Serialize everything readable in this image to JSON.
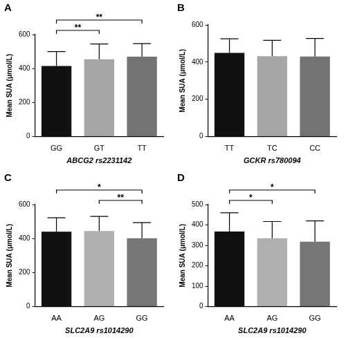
{
  "chart_data": [
    {
      "type": "bar",
      "title": "A",
      "x_label": "ABCG2 rs2231142",
      "y_label": "Mean SUA (μmol/L)",
      "categories": [
        "GG",
        "GT",
        "TT"
      ],
      "values": [
        415,
        455,
        470
      ],
      "errors": [
        85,
        90,
        77
      ],
      "colors": [
        "#111111",
        "#a6a6a6",
        "#737373"
      ],
      "ylim": [
        0,
        600
      ],
      "yticks": [
        0,
        200,
        400,
        600
      ],
      "grid": false,
      "annotations": [
        {
          "from": "GG",
          "to": "GT",
          "label": "**"
        },
        {
          "from": "GG",
          "to": "TT",
          "label": "**"
        }
      ]
    },
    {
      "type": "bar",
      "title": "B",
      "x_label": "GCKR rs780094",
      "y_label": "Mean SUA (μmol/L)",
      "categories": [
        "TT",
        "TC",
        "CC"
      ],
      "values": [
        450,
        432,
        430
      ],
      "errors": [
        75,
        85,
        97
      ],
      "colors": [
        "#111111",
        "#a6a6a6",
        "#737373"
      ],
      "ylim": [
        0,
        600
      ],
      "yticks": [
        0,
        200,
        400,
        600
      ],
      "grid": false,
      "annotations": []
    },
    {
      "type": "bar",
      "title": "C",
      "x_label": "SLC2A9 rs1014290",
      "y_label": "Mean SUA (μmol/L)",
      "categories": [
        "AA",
        "AG",
        "GG"
      ],
      "values": [
        440,
        445,
        402
      ],
      "errors": [
        82,
        85,
        92
      ],
      "colors": [
        "#111111",
        "#b0b0b0",
        "#767676"
      ],
      "ylim": [
        0,
        600
      ],
      "yticks": [
        0,
        200,
        400,
        600
      ],
      "grid": false,
      "annotations": [
        {
          "from": "AG",
          "to": "GG",
          "label": "**"
        },
        {
          "from": "AA",
          "to": "GG",
          "label": "*"
        }
      ]
    },
    {
      "type": "bar",
      "title": "D",
      "x_label": "SLC2A9 rs1014290",
      "y_label": "Mean SUA (μmol/L)",
      "categories": [
        "AA",
        "AG",
        "GG"
      ],
      "values": [
        368,
        335,
        318
      ],
      "errors": [
        92,
        82,
        102
      ],
      "colors": [
        "#111111",
        "#b0b0b0",
        "#767676"
      ],
      "ylim": [
        0,
        500
      ],
      "yticks": [
        0,
        100,
        200,
        300,
        400,
        500
      ],
      "grid": false,
      "annotations": [
        {
          "from": "AA",
          "to": "AG",
          "label": "*"
        },
        {
          "from": "AA",
          "to": "GG",
          "label": "*"
        }
      ]
    }
  ]
}
